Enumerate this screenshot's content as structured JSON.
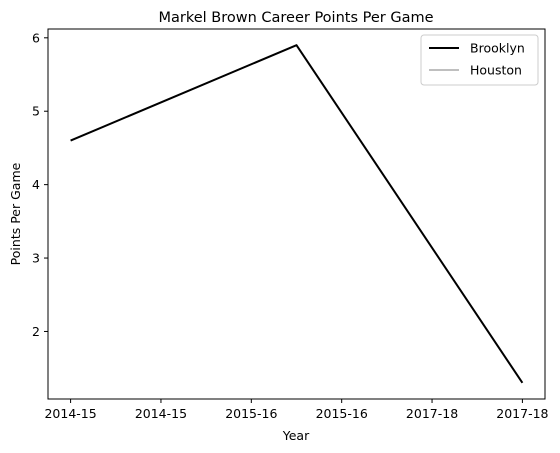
{
  "chart_data": {
    "type": "line",
    "title": "Markel Brown Career Points Per Game",
    "xlabel": "Year",
    "ylabel": "Points Per Game",
    "x_tick_labels": [
      "2014-15",
      "2014-15",
      "2015-16",
      "2015-16",
      "2017-18",
      "2017-18"
    ],
    "x": [
      0,
      1,
      2,
      3,
      4,
      5
    ],
    "xlim": [
      -0.25,
      5.25
    ],
    "ylim": [
      1.08,
      6.12
    ],
    "y_ticks": [
      2,
      3,
      4,
      5,
      6
    ],
    "series": [
      {
        "name": "Brooklyn",
        "color": "#000000",
        "points": [
          {
            "x": 0,
            "y": 4.6
          },
          {
            "x": 2.5,
            "y": 5.9
          },
          {
            "x": 5,
            "y": 1.3
          }
        ]
      },
      {
        "name": "Houston",
        "color": "#bfbfbf",
        "points": []
      }
    ],
    "legend_position": "top-right",
    "grid": false
  }
}
